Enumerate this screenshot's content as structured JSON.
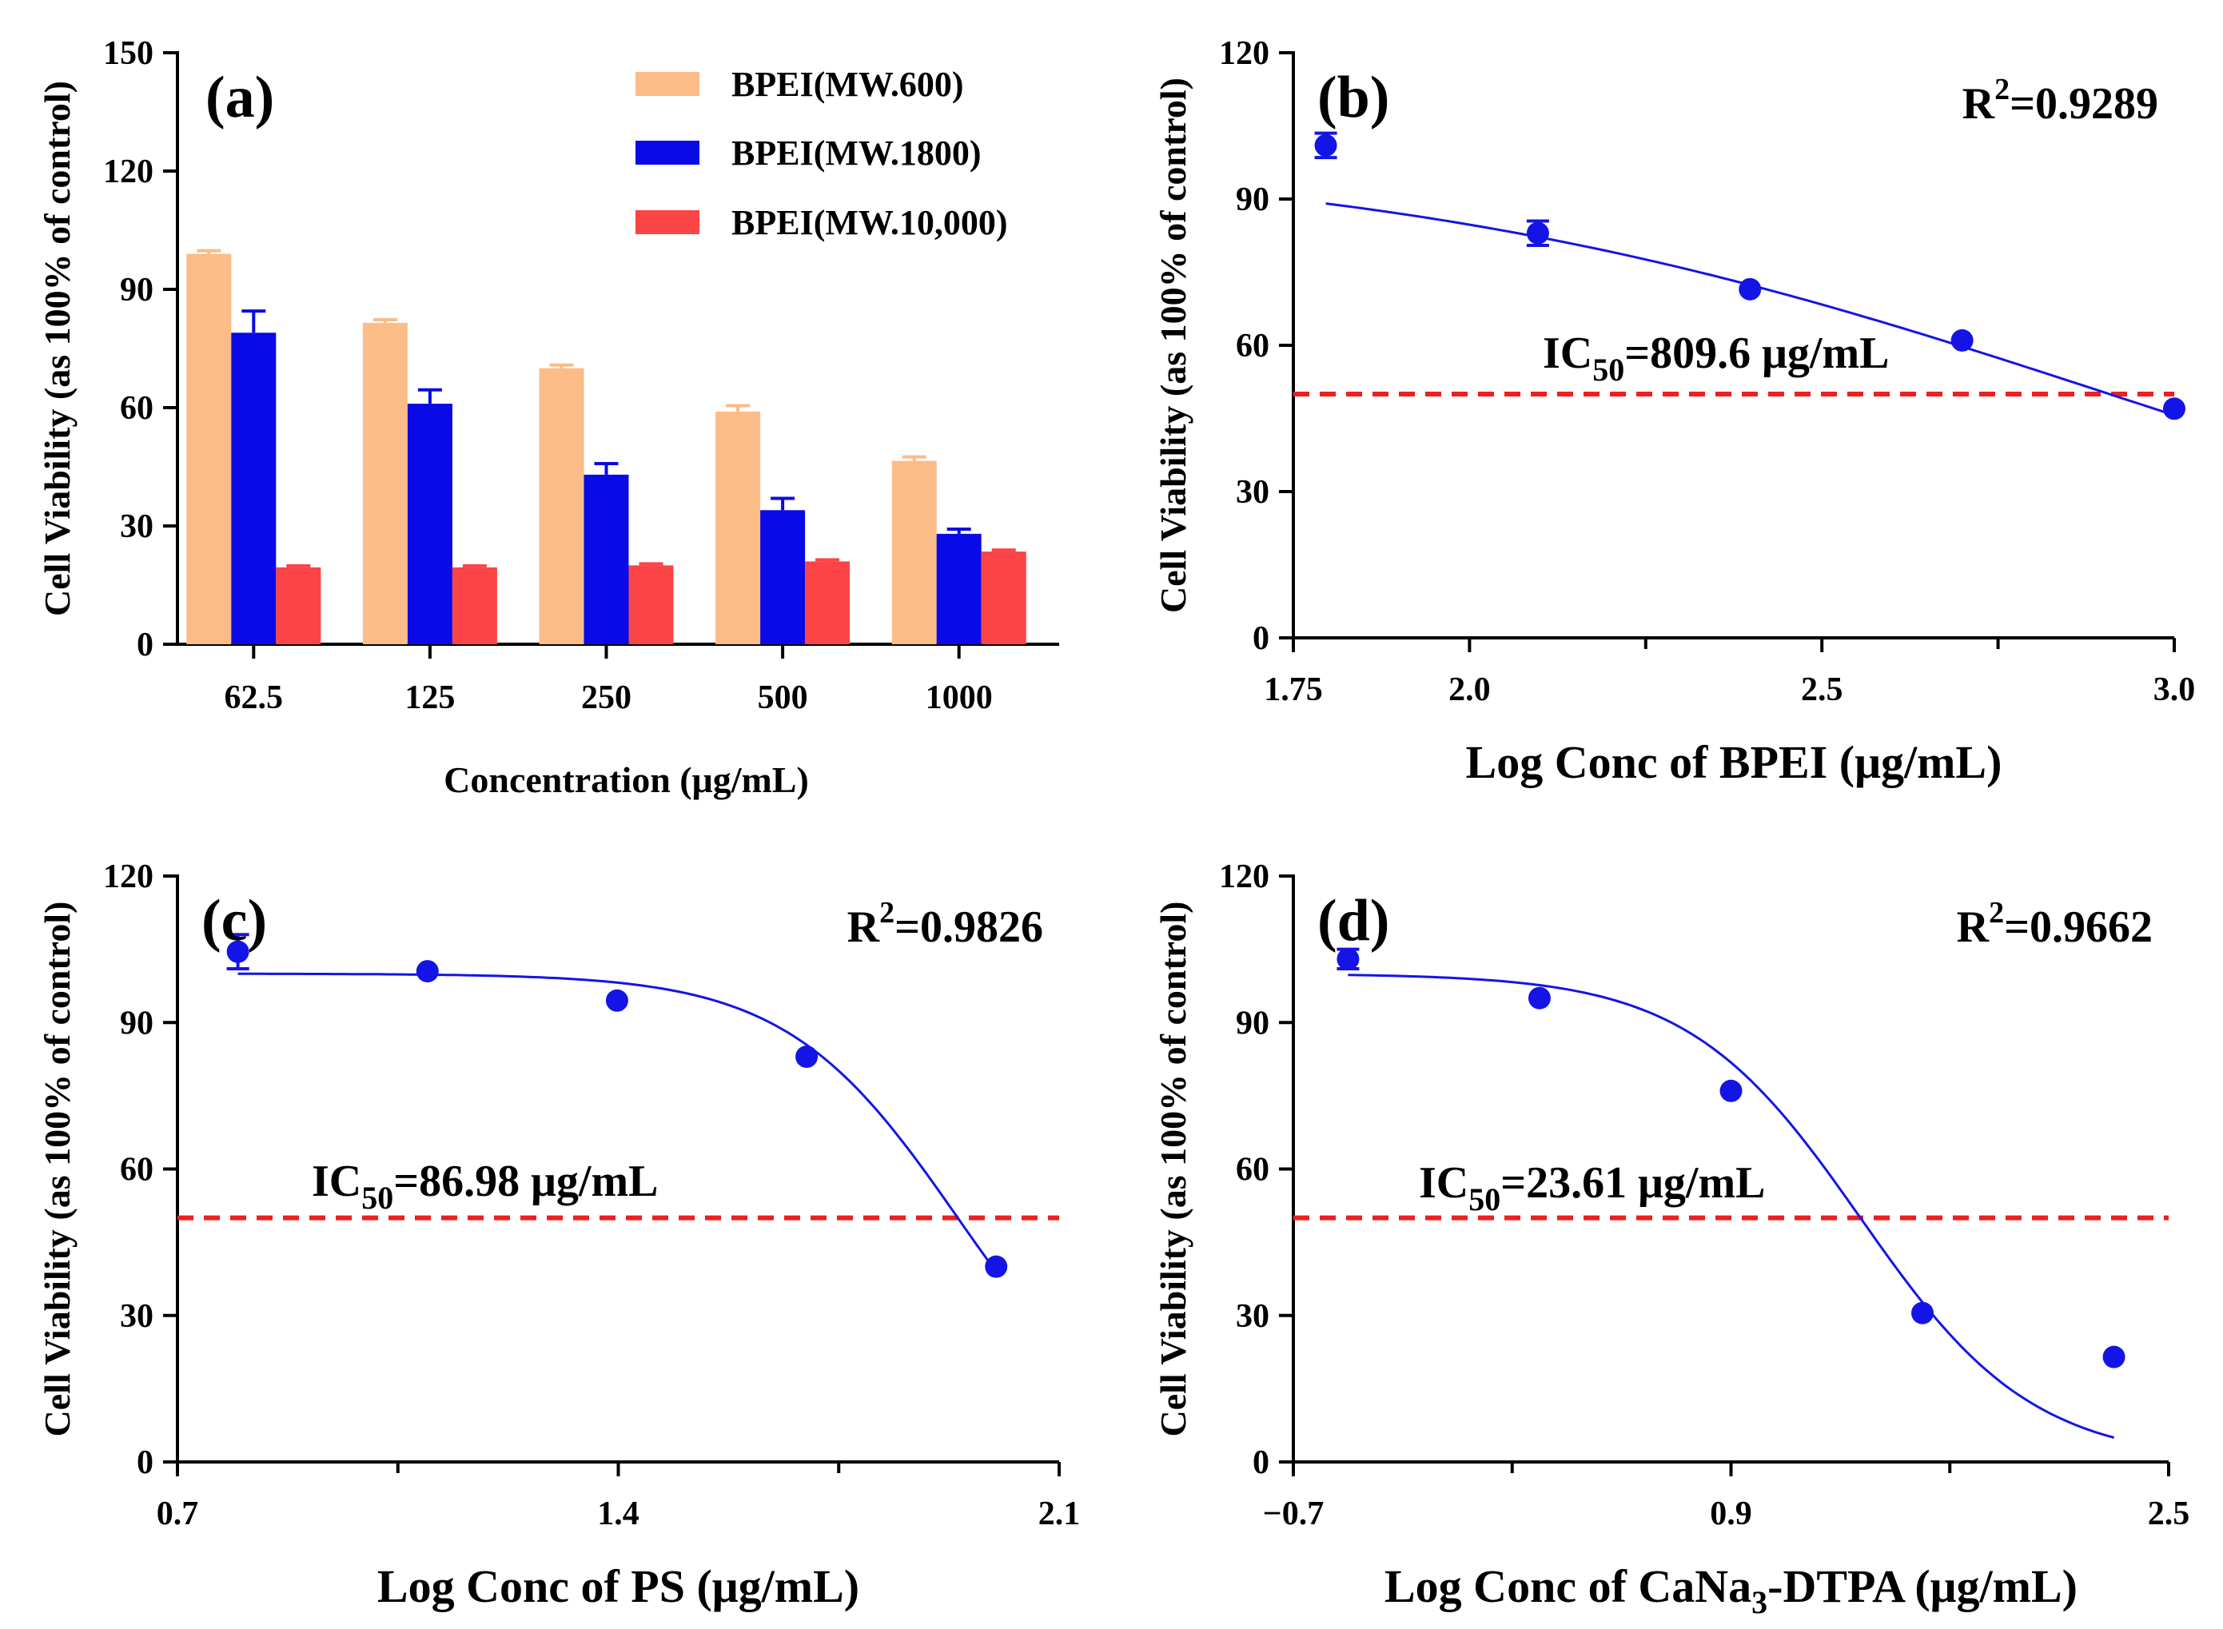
{
  "chart_data": [
    {
      "id": "a",
      "type": "bar",
      "panel_label": "(a)",
      "xlabel": "Concentration (μg/mL)",
      "ylabel": "Cell Viability (as 100% of control)",
      "ylim": [
        0,
        150
      ],
      "yticks": [
        0,
        30,
        60,
        90,
        120,
        150
      ],
      "categories": [
        "62.5",
        "125",
        "250",
        "500",
        "1000"
      ],
      "legend_position": "top-right",
      "series": [
        {
          "name": "BPEI(MW.600)",
          "color": "#FBBC87",
          "values": [
            99,
            81.5,
            70,
            59,
            46.5
          ],
          "errors": [
            0.8,
            0.8,
            0.8,
            1.5,
            1.0
          ]
        },
        {
          "name": "BPEI(MW.1800)",
          "color": "#0A0AE6",
          "values": [
            79,
            61,
            43,
            34,
            28
          ],
          "errors": [
            5.5,
            3.5,
            2.8,
            3.0,
            1.2
          ]
        },
        {
          "name": "BPEI(MW.10,000)",
          "color": "#FA4446",
          "values": [
            19.5,
            19.5,
            20,
            21,
            23.5
          ],
          "errors": [
            0.4,
            0.4,
            0.4,
            0.4,
            0.4
          ]
        }
      ]
    },
    {
      "id": "b",
      "type": "scatter",
      "panel_label": "(b)",
      "xlabel": "Log Conc of BPEI (μg/mL)",
      "ylabel": "Cell Viability (as 100% of control)",
      "xlim": [
        1.75,
        3.0
      ],
      "ylim": [
        0,
        120
      ],
      "xticks": [
        1.75,
        2.0,
        2.5,
        3.0
      ],
      "xtick_labels": [
        "1.75",
        "2.0",
        "2.5",
        "3.0"
      ],
      "xminor": [
        2.25,
        2.75
      ],
      "yticks": [
        0,
        30,
        60,
        90,
        120
      ],
      "points": [
        {
          "x": 1.796,
          "y": 101,
          "err": 2.5
        },
        {
          "x": 2.097,
          "y": 83,
          "err": 2.5
        },
        {
          "x": 2.398,
          "y": 71.5,
          "err": 0
        },
        {
          "x": 2.699,
          "y": 61,
          "err": 0
        },
        {
          "x": 3.0,
          "y": 47,
          "err": 0
        }
      ],
      "fit": {
        "top": 100,
        "bottom": 0,
        "log_ic50": 2.908,
        "hill": 0.82,
        "x_start": 1.796,
        "x_end": 3.0
      },
      "ic50_line_y": 50,
      "r2_label": "R",
      "r2_sup": "2",
      "r2_value": "=0.9289",
      "ic50_label": "IC",
      "ic50_sub": "50",
      "ic50_value": "=809.6 μg/mL"
    },
    {
      "id": "c",
      "type": "scatter",
      "panel_label": "(c)",
      "xlabel": "Log Conc of PS (μg/mL)",
      "ylabel": "Cell Viability (as 100% of control)",
      "xlim": [
        0.7,
        2.1
      ],
      "ylim": [
        0,
        120
      ],
      "xticks": [
        0.7,
        1.4,
        2.1
      ],
      "xtick_labels": [
        "0.7",
        "1.4",
        "2.1"
      ],
      "xminor": [
        1.05,
        1.75
      ],
      "yticks": [
        0,
        30,
        60,
        90,
        120
      ],
      "points": [
        {
          "x": 0.796,
          "y": 104.5,
          "err": 3.5
        },
        {
          "x": 1.097,
          "y": 100.5,
          "err": 0
        },
        {
          "x": 1.398,
          "y": 94.5,
          "err": 0
        },
        {
          "x": 1.699,
          "y": 83,
          "err": 0
        },
        {
          "x": 2.0,
          "y": 40,
          "err": 0
        }
      ],
      "fit": {
        "top": 100,
        "bottom": 0,
        "log_ic50": 1.939,
        "hill": 3.2,
        "x_start": 0.796,
        "x_end": 2.0
      },
      "ic50_line_y": 50,
      "r2_label": "R",
      "r2_sup": "2",
      "r2_value": "=0.9826",
      "ic50_label": "IC",
      "ic50_sub": "50",
      "ic50_value": "=86.98 μg/mL"
    },
    {
      "id": "d",
      "type": "scatter",
      "panel_label": "(d)",
      "xlabel_main": "Log Conc of CaNa",
      "xlabel_sub": "3",
      "xlabel_rest": "-DTPA (μg/mL)",
      "ylabel": "Cell Viability (as 100% of control)",
      "xlim": [
        -0.7,
        2.5
      ],
      "ylim": [
        0,
        120
      ],
      "xticks": [
        -0.7,
        0.9,
        2.5
      ],
      "xtick_labels": [
        "−0.7",
        "0.9",
        "2.5"
      ],
      "xminor": [
        0.1,
        1.7
      ],
      "yticks": [
        0,
        30,
        60,
        90,
        120
      ],
      "points": [
        {
          "x": -0.5,
          "y": 103,
          "err": 2.0
        },
        {
          "x": 0.2,
          "y": 95,
          "err": 0
        },
        {
          "x": 0.9,
          "y": 76,
          "err": 0
        },
        {
          "x": 1.6,
          "y": 30.5,
          "err": 0
        },
        {
          "x": 2.3,
          "y": 21.5,
          "err": 0
        }
      ],
      "fit": {
        "top": 100,
        "bottom": 0,
        "log_ic50": 1.373,
        "hill": 1.38,
        "x_start": -0.5,
        "x_end": 2.3
      },
      "ic50_line_y": 50,
      "r2_label": "R",
      "r2_sup": "2",
      "r2_value": "=0.9662",
      "ic50_label": "IC",
      "ic50_sub": "50",
      "ic50_value": "=23.61 μg/mL"
    }
  ]
}
